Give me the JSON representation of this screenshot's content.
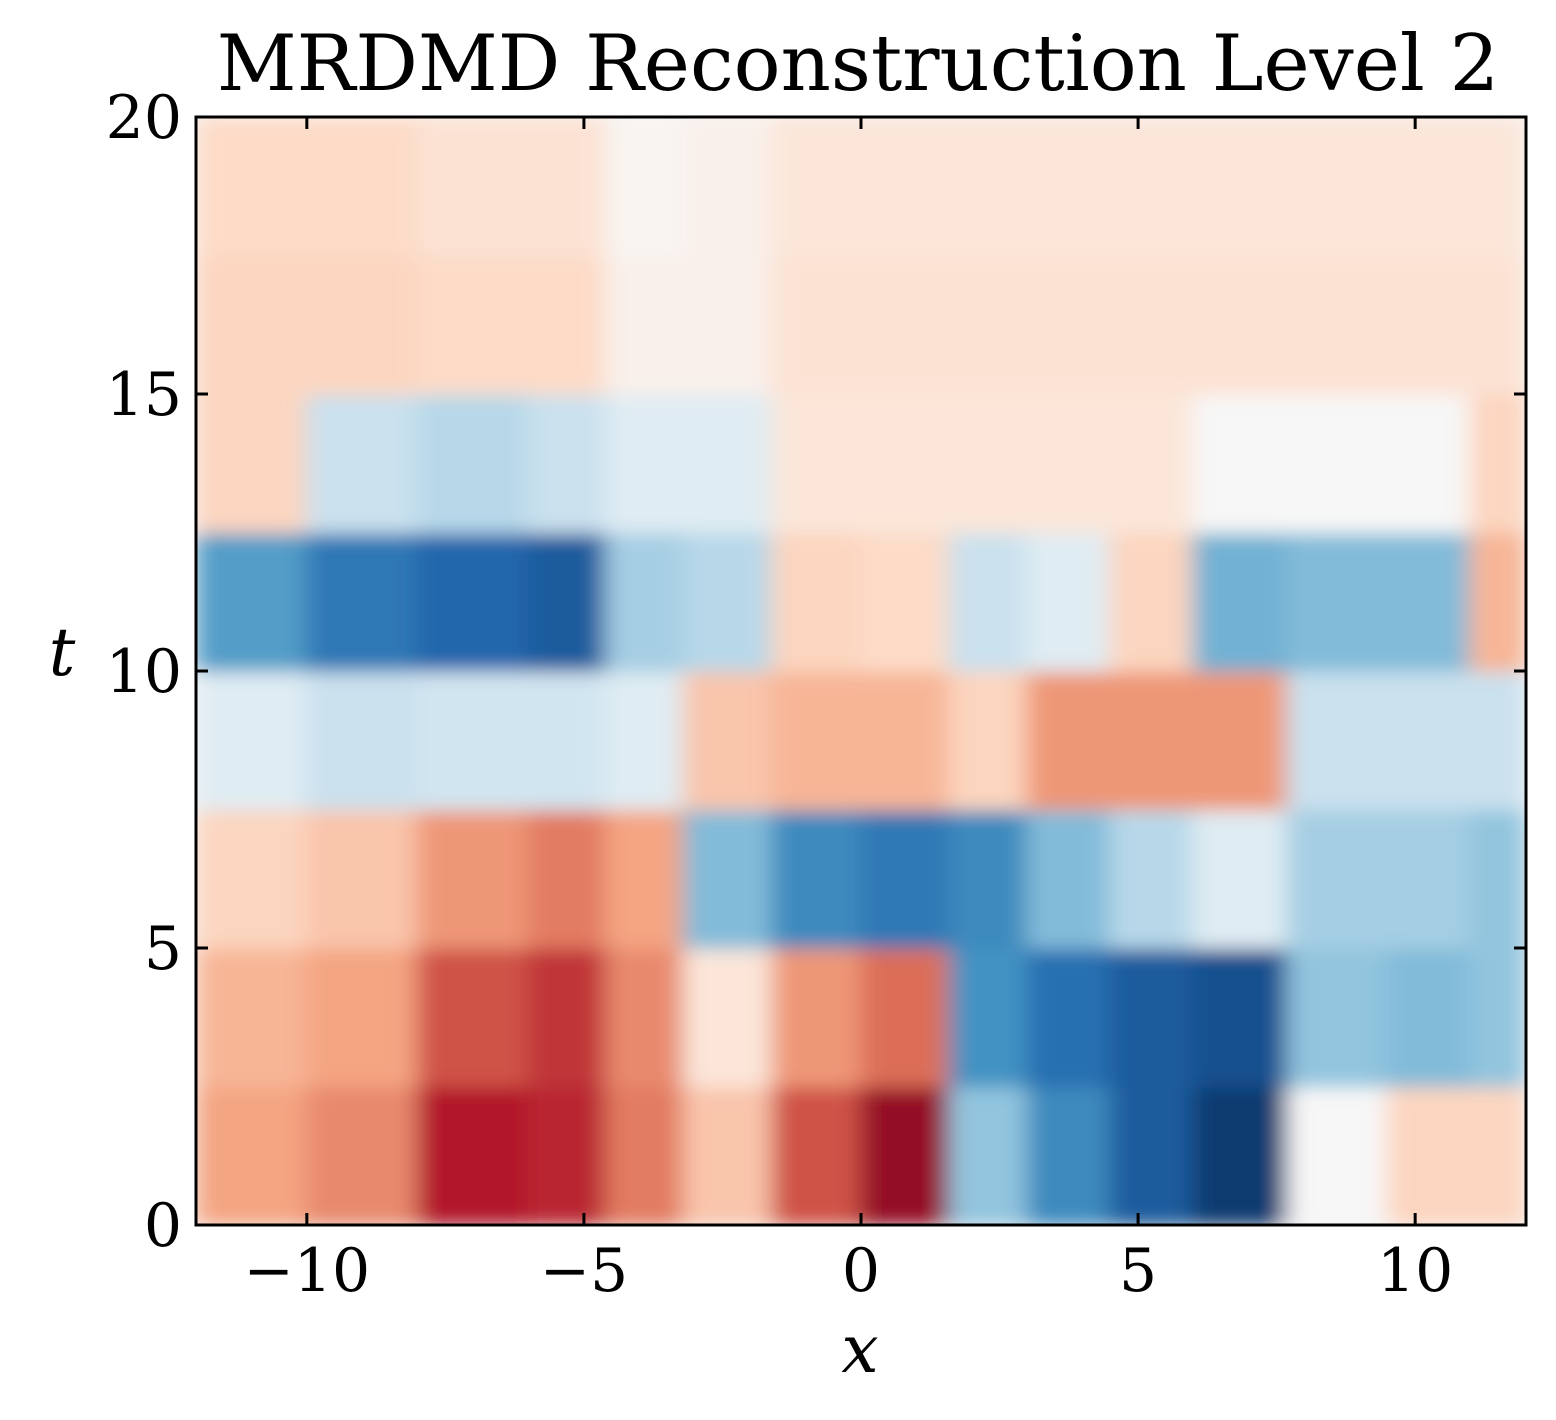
{
  "chart_data": {
    "type": "heatmap",
    "title": "MRDMD Reconstruction Level 2",
    "xlabel": "x",
    "ylabel": "t",
    "xlim": [
      -12,
      12
    ],
    "ylim": [
      0,
      20
    ],
    "x_ticks": [
      -10,
      -5,
      0,
      5,
      10
    ],
    "y_ticks": [
      0,
      5,
      10,
      15,
      20
    ],
    "x_tick_labels": [
      "−10",
      "−5",
      "0",
      "5",
      "10"
    ],
    "y_tick_labels": [
      "0",
      "5",
      "10",
      "15",
      "20"
    ],
    "colormap": "RdBu_r",
    "colorbar": false,
    "grid": false,
    "clim": [
      -1,
      1
    ],
    "x_bins": [
      -12,
      -10,
      -8,
      -6,
      -4.6,
      -3.2,
      -1.6,
      0,
      1.6,
      3,
      4.5,
      6,
      7.7,
      9.5,
      11,
      12
    ],
    "t_bins": [
      0,
      2.5,
      5,
      7.5,
      10,
      12.5,
      15,
      17.5,
      20
    ],
    "values": [
      [
        0.25,
        0.35,
        0.75,
        0.7,
        0.4,
        0.15,
        0.55,
        0.85,
        -0.25,
        -0.55,
        -0.8,
        -0.95,
        0.0,
        0.1,
        0.1
      ],
      [
        0.2,
        0.25,
        0.55,
        0.65,
        0.35,
        0.05,
        0.3,
        0.45,
        -0.5,
        -0.7,
        -0.8,
        -0.85,
        -0.25,
        -0.3,
        -0.25
      ],
      [
        0.1,
        0.15,
        0.3,
        0.4,
        0.25,
        -0.3,
        -0.55,
        -0.65,
        -0.55,
        -0.3,
        -0.15,
        -0.05,
        -0.2,
        -0.2,
        -0.25
      ],
      [
        -0.05,
        -0.1,
        -0.08,
        -0.08,
        -0.05,
        0.15,
        0.2,
        0.2,
        0.1,
        0.3,
        0.3,
        0.3,
        -0.1,
        -0.1,
        -0.1
      ],
      [
        -0.45,
        -0.65,
        -0.75,
        -0.8,
        -0.2,
        -0.15,
        0.1,
        0.08,
        -0.1,
        -0.05,
        0.1,
        -0.35,
        -0.3,
        -0.3,
        0.2
      ],
      [
        0.1,
        -0.1,
        -0.15,
        -0.1,
        -0.05,
        -0.05,
        0.05,
        0.05,
        0.05,
        0.05,
        0.05,
        0.0,
        0.0,
        0.0,
        0.1
      ],
      [
        0.1,
        0.1,
        0.08,
        0.08,
        0.02,
        0.02,
        0.06,
        0.06,
        0.06,
        0.06,
        0.06,
        0.06,
        0.06,
        0.06,
        0.06
      ],
      [
        0.08,
        0.08,
        0.06,
        0.06,
        0.01,
        0.02,
        0.05,
        0.05,
        0.05,
        0.05,
        0.05,
        0.05,
        0.05,
        0.05,
        0.05
      ]
    ]
  }
}
